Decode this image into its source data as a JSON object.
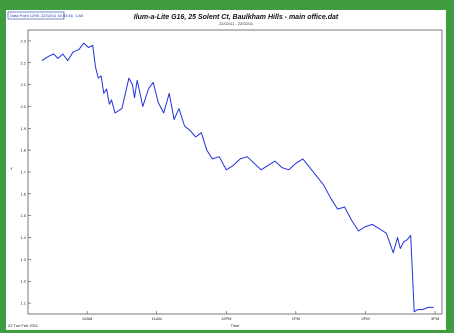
{
  "chart_data": {
    "type": "line",
    "title": "Ilum-a-Lite G16, 25 Solent Ct, Baulkham Hills - main office.dat",
    "subtitle": "22/02/11 - 22/02/11",
    "xlabel": "Time",
    "ylabel": "Y",
    "readout": "Data Point 1298: 22/02/11 16:53:46, 1.88",
    "footer_date": "22 Tue Feb 2011",
    "x_ticks": [
      "10AM",
      "11AM",
      "12PM",
      "1PM",
      "2PM",
      "3PM"
    ],
    "y_ticks": [
      "1.1",
      "1.2",
      "1.3",
      "1.4",
      "1.5",
      "1.6",
      "1.7",
      "1.8",
      "1.9",
      "2.0",
      "2.1",
      "2.2",
      "2.3"
    ],
    "xlim": [
      9.15,
      15.1
    ],
    "ylim": [
      1.05,
      2.35
    ],
    "grid": false,
    "line_color": "#2233dd",
    "series": [
      {
        "x": [
          9.35,
          9.45,
          9.52,
          9.58,
          9.65,
          9.72,
          9.8,
          9.88,
          9.95,
          10.02,
          10.08,
          10.12,
          10.16,
          10.2,
          10.24,
          10.28,
          10.32,
          10.35,
          10.4,
          10.5,
          10.6,
          10.65,
          10.68,
          10.72,
          10.8,
          10.88,
          10.95,
          11.02,
          11.1,
          11.18,
          11.25,
          11.32,
          11.4,
          11.48,
          11.56,
          11.64,
          11.72,
          11.8,
          11.9,
          12.0,
          12.1,
          12.2,
          12.3,
          12.4,
          12.5,
          12.6,
          12.7,
          12.8,
          12.9,
          13.0,
          13.1,
          13.2,
          13.3,
          13.4,
          13.5,
          13.6,
          13.7,
          13.8,
          13.9,
          14.0,
          14.1,
          14.2,
          14.3,
          14.4,
          14.46,
          14.5,
          14.55,
          14.6,
          14.65,
          14.7,
          14.75,
          14.82,
          14.9,
          14.98
        ],
        "y": [
          2.21,
          2.23,
          2.24,
          2.22,
          2.24,
          2.21,
          2.25,
          2.26,
          2.29,
          2.27,
          2.28,
          2.18,
          2.13,
          2.14,
          2.06,
          2.08,
          2.01,
          2.03,
          1.97,
          1.99,
          2.13,
          2.1,
          2.04,
          2.12,
          2.0,
          2.08,
          2.11,
          2.02,
          1.97,
          2.06,
          1.94,
          1.99,
          1.91,
          1.89,
          1.86,
          1.88,
          1.8,
          1.76,
          1.77,
          1.71,
          1.73,
          1.76,
          1.77,
          1.74,
          1.71,
          1.73,
          1.75,
          1.72,
          1.71,
          1.74,
          1.76,
          1.72,
          1.68,
          1.64,
          1.58,
          1.53,
          1.54,
          1.48,
          1.43,
          1.45,
          1.46,
          1.44,
          1.42,
          1.33,
          1.4,
          1.35,
          1.38,
          1.39,
          1.41,
          1.06,
          1.07,
          1.07,
          1.08,
          1.08
        ]
      }
    ]
  }
}
